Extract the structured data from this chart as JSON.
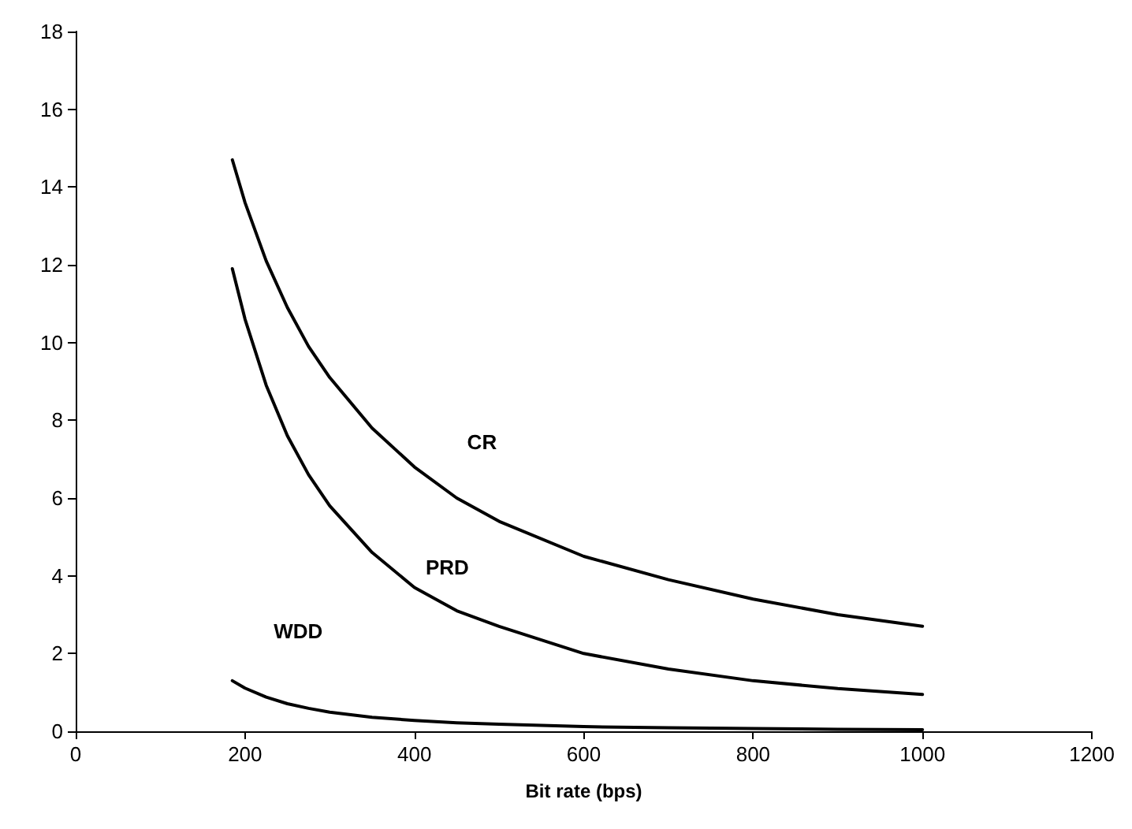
{
  "chart_data": {
    "type": "line",
    "xlabel": "Bit rate (bps)",
    "x": [
      185,
      200,
      225,
      250,
      275,
      300,
      350,
      400,
      450,
      500,
      600,
      700,
      800,
      900,
      1000
    ],
    "series": [
      {
        "name": "CR",
        "color": "#000000",
        "values": [
          14.7,
          13.6,
          12.1,
          10.9,
          9.9,
          9.1,
          7.8,
          6.8,
          6.0,
          5.4,
          4.5,
          3.9,
          3.4,
          3.0,
          2.7
        ]
      },
      {
        "name": "PRD",
        "color": "#000000",
        "values": [
          11.9,
          10.6,
          8.9,
          7.6,
          6.6,
          5.8,
          4.6,
          3.7,
          3.1,
          2.7,
          2.0,
          1.6,
          1.3,
          1.1,
          0.95
        ]
      },
      {
        "name": "WDD",
        "color": "#000000",
        "values": [
          1.3,
          1.11,
          0.88,
          0.71,
          0.59,
          0.49,
          0.36,
          0.28,
          0.22,
          0.18,
          0.12,
          0.09,
          0.07,
          0.05,
          0.04
        ]
      }
    ],
    "xlim": [
      0,
      1200
    ],
    "xticks": [
      0,
      200,
      400,
      600,
      800,
      1000,
      1200
    ],
    "ylim": [
      0,
      18
    ],
    "yticks": [
      0,
      2,
      4,
      6,
      8,
      10,
      12,
      14,
      16,
      18
    ],
    "grid": false,
    "legend": false,
    "marker": "none",
    "line_style": "solid"
  }
}
